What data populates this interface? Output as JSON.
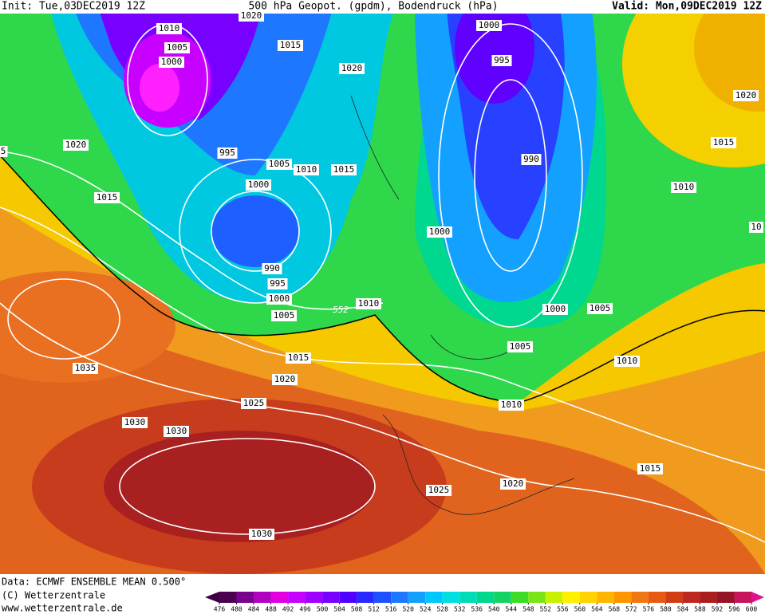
{
  "header": {
    "init": "Init: Tue,03DEC2019 12Z",
    "title": "500 hPa Geopot. (gpdm), Bodendruck (hPa)",
    "valid": "Valid: Mon,09DEC2019 12Z"
  },
  "isobar_labels": [
    "1020",
    "1010",
    "1005",
    "1000",
    "1015",
    "1020",
    "1000",
    "995",
    "1020",
    "1015",
    "990",
    "1020",
    "995",
    "1005",
    "1010",
    "1015",
    "1000",
    "1010",
    "1015",
    "1000",
    "10",
    "990",
    "995",
    "1000",
    "1005",
    "1010",
    "1000",
    "1005",
    "1005",
    "1015",
    "1010",
    "1035",
    "1020",
    "1025",
    "1010",
    "1030",
    "1030",
    "1015",
    "1025",
    "1020",
    "1030",
    "5"
  ],
  "contour_label": "552",
  "footer": {
    "data": "Data: ECMWF ENSEMBLE MEAN 0.500°",
    "copyright": "(C) Wetterzentrale",
    "url": "www.wetterzentrale.de"
  },
  "colorbar": {
    "ticks": [
      476,
      480,
      484,
      488,
      492,
      496,
      500,
      504,
      508,
      512,
      516,
      520,
      524,
      528,
      532,
      536,
      540,
      544,
      548,
      552,
      556,
      560,
      564,
      568,
      572,
      576,
      580,
      584,
      588,
      592,
      596,
      600
    ]
  }
}
